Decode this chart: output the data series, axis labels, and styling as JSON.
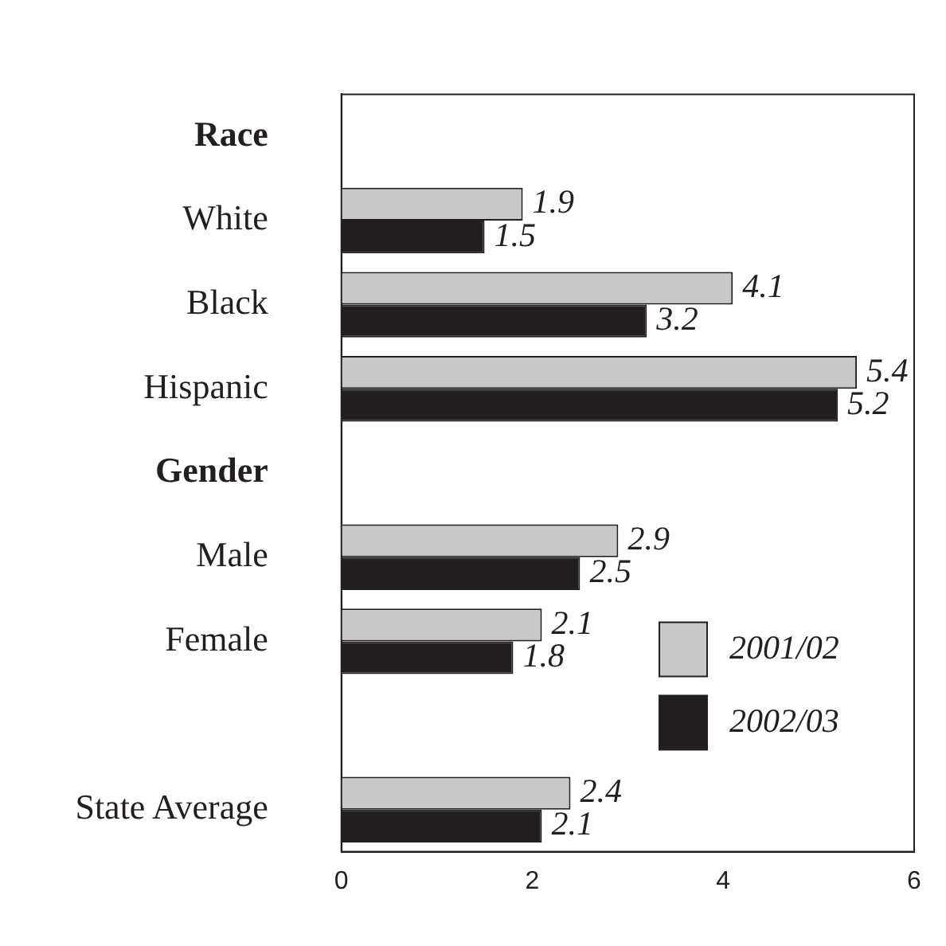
{
  "chart_data": {
    "type": "bar",
    "orientation": "horizontal",
    "categories": [
      "Race",
      "White",
      "Black",
      "Hispanic",
      "Gender",
      "Male",
      "Female",
      null,
      "State Average"
    ],
    "series": [
      {
        "name": "2001/02",
        "color": "#c8c8c8",
        "values": [
          null,
          1.9,
          4.1,
          5.4,
          null,
          2.9,
          2.1,
          null,
          2.4
        ]
      },
      {
        "name": "2002/03",
        "color": "#231f20",
        "values": [
          null,
          1.5,
          3.2,
          5.2,
          null,
          2.5,
          1.8,
          null,
          2.1
        ]
      }
    ],
    "xlim": [
      0,
      6
    ],
    "xticks": [
      0,
      2,
      4,
      6
    ],
    "grid": false,
    "legend": "bottom right",
    "data_labels": true
  }
}
